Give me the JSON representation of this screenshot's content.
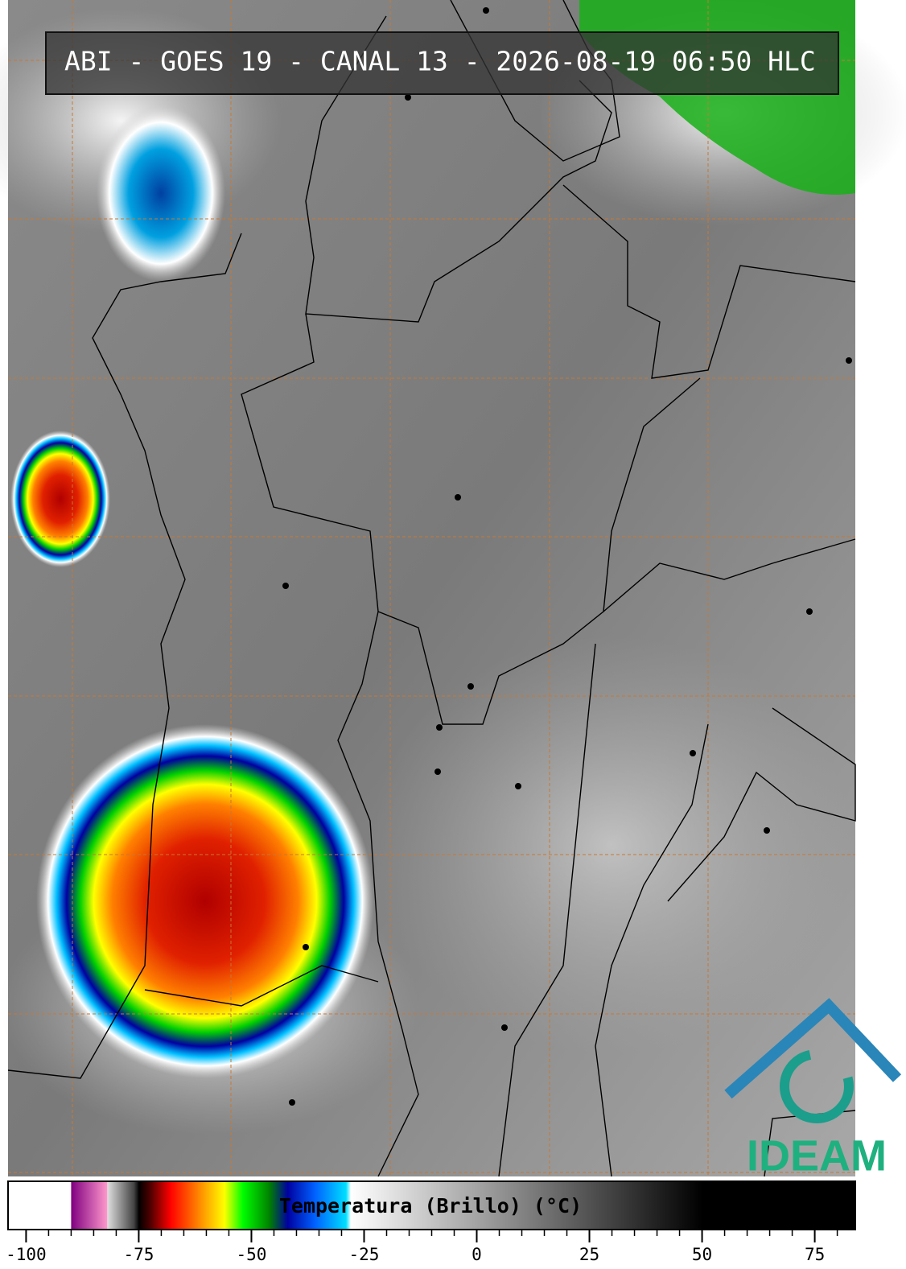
{
  "header": {
    "title": "ABI - GOES 19 - CANAL 13 - 2026-08-19 06:50 HLC"
  },
  "logo": {
    "text": "IDEAM"
  },
  "colorbar": {
    "label": "Temperatura (Brillo) (°C)",
    "xlim": [
      -104,
      84
    ],
    "xticks": [
      -100,
      -75,
      -50,
      -25,
      0,
      25,
      50,
      75
    ],
    "minor_tick_step": 5,
    "stops": [
      {
        "value": -104,
        "color": "#ffffff"
      },
      {
        "value": -90,
        "color": "#ffffff"
      },
      {
        "value": -90,
        "color": "#800080"
      },
      {
        "value": -82,
        "color": "#ff99cc"
      },
      {
        "value": -82,
        "color": "#e0e0e0"
      },
      {
        "value": -76,
        "color": "#404040"
      },
      {
        "value": -75,
        "color": "#000000"
      },
      {
        "value": -72,
        "color": "#600000"
      },
      {
        "value": -68,
        "color": "#ff0000"
      },
      {
        "value": -62,
        "color": "#ff8000"
      },
      {
        "value": -56,
        "color": "#ffff00"
      },
      {
        "value": -52,
        "color": "#00ff00"
      },
      {
        "value": -46,
        "color": "#008000"
      },
      {
        "value": -42,
        "color": "#0000a0"
      },
      {
        "value": -36,
        "color": "#0060ff"
      },
      {
        "value": -29,
        "color": "#00e0ff"
      },
      {
        "value": -28,
        "color": "#ffffff"
      },
      {
        "value": 50,
        "color": "#000000"
      },
      {
        "value": 84,
        "color": "#000000"
      }
    ]
  }
}
